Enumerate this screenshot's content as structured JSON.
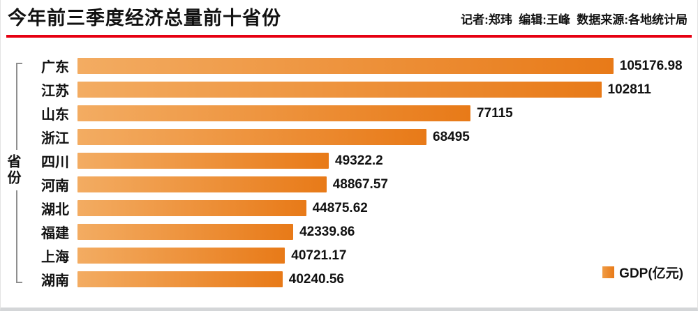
{
  "header": {
    "title": "今年前三季度经济总量前十省份",
    "credits": "记者:郑玮  编辑:王峰  数据来源:各地统计局",
    "underline_color": "#e60012"
  },
  "chart_data": {
    "type": "bar",
    "orientation": "horizontal",
    "title": "今年前三季度经济总量前十省份",
    "ylabel": "省份",
    "xlabel": "",
    "categories": [
      "广东",
      "江苏",
      "山东",
      "浙江",
      "四川",
      "河南",
      "湖北",
      "福建",
      "上海",
      "湖南"
    ],
    "values": [
      105176.98,
      102811,
      77115,
      68495,
      49322.2,
      48867.57,
      44875.62,
      42339.86,
      40721.17,
      40240.56
    ],
    "value_labels": [
      "105176.98",
      "102811",
      "77115",
      "68495",
      "49322.2",
      "48867.57",
      "44875.62",
      "42339.86",
      "40721.17",
      "40240.56"
    ],
    "xlim": [
      0,
      120000
    ],
    "grid": false,
    "legend": {
      "label": "GDP(亿元)",
      "position": "bottom-right"
    },
    "bar_color_gradient": [
      "#f3ac62",
      "#e87a18"
    ]
  }
}
